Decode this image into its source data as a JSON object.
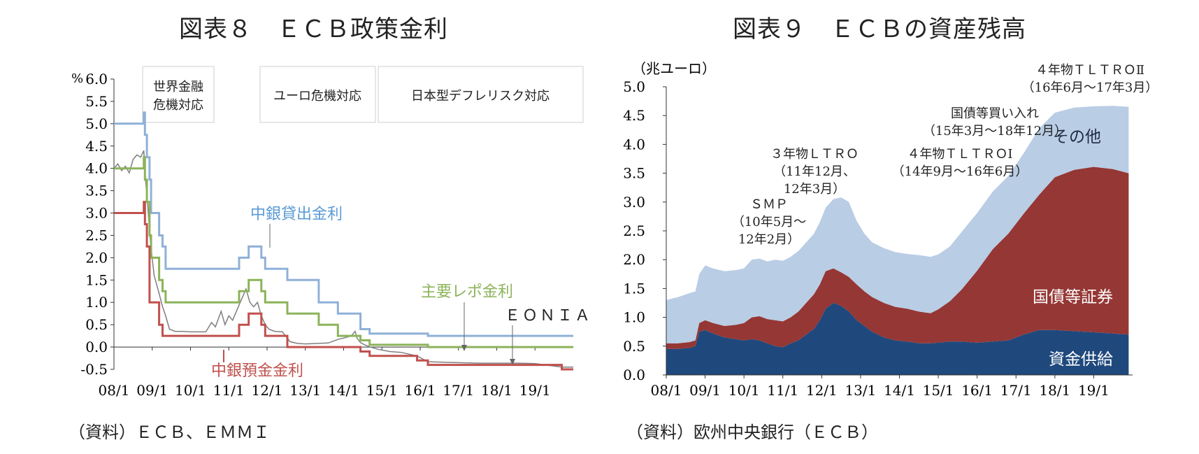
{
  "left": {
    "title": "図表８　ＥＣＢ政策金利",
    "source": "（資料）ＥＣＢ、ＥＭＭＩ",
    "unit": "%",
    "phase_labels": [
      [
        "世界金融",
        "危機対応"
      ],
      [
        "ユーロ危機対応"
      ],
      [
        "日本型デフレリスク対応"
      ]
    ]
  },
  "right": {
    "title": "図表９　ＥＣＢの資産残高",
    "source": "（資料）欧州中央銀行（ＥＣＢ）",
    "unit": "（兆ユーロ）",
    "annotations": {
      "smp": [
        "ＳＭＰ",
        "（10年5月～",
        "12年2月）"
      ],
      "ltro3": [
        "３年物ＬＴＲＯ",
        "（11年12月、",
        "12年3月）"
      ],
      "tltro1": [
        "４年物ＴＬＴＲＯⅠ",
        "（14年9月～16年6月）"
      ],
      "qe": [
        "国債等買い入れ",
        "（15年3月～18年12月）"
      ],
      "tltro2": [
        "４年物ＴＬＴＲＯⅡ",
        "（16年6月～17年3月）"
      ]
    }
  },
  "chart_data": [
    {
      "type": "line",
      "title": "図表８　ＥＣＢ政策金利",
      "ylabel": "%",
      "ylim": [
        -0.5,
        6.0
      ],
      "yticks": [
        "6.0",
        "5.5",
        "5.0",
        "4.5",
        "4.0",
        "3.5",
        "3.0",
        "2.5",
        "2.0",
        "1.5",
        "1.0",
        "0.5",
        "0.0",
        "-0.5"
      ],
      "xticks": [
        "08/1",
        "09/1",
        "10/1",
        "11/1",
        "12/1",
        "13/1",
        "14/1",
        "15/1",
        "16/1",
        "17/1",
        "18/1",
        "19/1"
      ],
      "xlim": [
        2008.0,
        2020.0
      ],
      "grid": false,
      "series": [
        {
          "name": "中銀貸出金利",
          "color": "#8fb0d8",
          "points": [
            [
              2008.0,
              5.0
            ],
            [
              2008.78,
              5.0
            ],
            [
              2008.78,
              5.25
            ],
            [
              2008.81,
              5.25
            ],
            [
              2008.81,
              4.75
            ],
            [
              2008.86,
              4.75
            ],
            [
              2008.86,
              4.25
            ],
            [
              2008.93,
              4.25
            ],
            [
              2008.93,
              3.75
            ],
            [
              2008.97,
              3.75
            ],
            [
              2008.97,
              3.0
            ],
            [
              2009.18,
              3.0
            ],
            [
              2009.18,
              2.5
            ],
            [
              2009.27,
              2.5
            ],
            [
              2009.27,
              2.25
            ],
            [
              2009.35,
              2.25
            ],
            [
              2009.35,
              1.75
            ],
            [
              2011.27,
              1.75
            ],
            [
              2011.27,
              2.0
            ],
            [
              2011.52,
              2.0
            ],
            [
              2011.52,
              2.25
            ],
            [
              2011.85,
              2.25
            ],
            [
              2011.85,
              2.0
            ],
            [
              2011.95,
              2.0
            ],
            [
              2011.95,
              1.75
            ],
            [
              2012.53,
              1.75
            ],
            [
              2012.53,
              1.5
            ],
            [
              2013.35,
              1.5
            ],
            [
              2013.35,
              1.0
            ],
            [
              2013.85,
              1.0
            ],
            [
              2013.85,
              0.75
            ],
            [
              2014.44,
              0.75
            ],
            [
              2014.44,
              0.4
            ],
            [
              2014.68,
              0.4
            ],
            [
              2014.68,
              0.3
            ],
            [
              2016.2,
              0.3
            ],
            [
              2016.2,
              0.25
            ],
            [
              2020.0,
              0.25
            ]
          ]
        },
        {
          "name": "主要レポ金利",
          "color": "#8cb35a",
          "points": [
            [
              2008.0,
              4.0
            ],
            [
              2008.78,
              4.0
            ],
            [
              2008.78,
              4.25
            ],
            [
              2008.81,
              4.25
            ],
            [
              2008.81,
              3.75
            ],
            [
              2008.86,
              3.75
            ],
            [
              2008.86,
              3.25
            ],
            [
              2008.93,
              3.25
            ],
            [
              2008.93,
              2.5
            ],
            [
              2008.97,
              2.5
            ],
            [
              2008.97,
              2.0
            ],
            [
              2009.18,
              2.0
            ],
            [
              2009.18,
              1.5
            ],
            [
              2009.27,
              1.5
            ],
            [
              2009.27,
              1.25
            ],
            [
              2009.35,
              1.25
            ],
            [
              2009.35,
              1.0
            ],
            [
              2011.27,
              1.0
            ],
            [
              2011.27,
              1.25
            ],
            [
              2011.52,
              1.25
            ],
            [
              2011.52,
              1.5
            ],
            [
              2011.85,
              1.5
            ],
            [
              2011.85,
              1.25
            ],
            [
              2011.95,
              1.25
            ],
            [
              2011.95,
              1.0
            ],
            [
              2012.53,
              1.0
            ],
            [
              2012.53,
              0.75
            ],
            [
              2013.35,
              0.75
            ],
            [
              2013.35,
              0.5
            ],
            [
              2013.85,
              0.5
            ],
            [
              2013.85,
              0.25
            ],
            [
              2014.44,
              0.25
            ],
            [
              2014.44,
              0.15
            ],
            [
              2014.68,
              0.15
            ],
            [
              2014.68,
              0.05
            ],
            [
              2016.2,
              0.05
            ],
            [
              2016.2,
              0.0
            ],
            [
              2020.0,
              0.0
            ]
          ]
        },
        {
          "name": "中銀預金金利",
          "color": "#c0504d",
          "points": [
            [
              2008.0,
              3.0
            ],
            [
              2008.78,
              3.0
            ],
            [
              2008.78,
              3.25
            ],
            [
              2008.81,
              3.25
            ],
            [
              2008.81,
              2.75
            ],
            [
              2008.86,
              2.75
            ],
            [
              2008.86,
              2.25
            ],
            [
              2008.93,
              2.25
            ],
            [
              2008.93,
              1.0
            ],
            [
              2008.97,
              1.0
            ],
            [
              2008.97,
              1.0
            ],
            [
              2009.18,
              1.0
            ],
            [
              2009.18,
              0.5
            ],
            [
              2009.27,
              0.5
            ],
            [
              2009.27,
              0.25
            ],
            [
              2011.27,
              0.25
            ],
            [
              2011.27,
              0.5
            ],
            [
              2011.52,
              0.5
            ],
            [
              2011.52,
              0.75
            ],
            [
              2011.85,
              0.75
            ],
            [
              2011.85,
              0.5
            ],
            [
              2011.95,
              0.5
            ],
            [
              2011.95,
              0.25
            ],
            [
              2012.53,
              0.25
            ],
            [
              2012.53,
              0.0
            ],
            [
              2014.44,
              0.0
            ],
            [
              2014.44,
              -0.1
            ],
            [
              2014.68,
              -0.1
            ],
            [
              2014.68,
              -0.2
            ],
            [
              2015.92,
              -0.2
            ],
            [
              2015.92,
              -0.3
            ],
            [
              2016.2,
              -0.3
            ],
            [
              2016.2,
              -0.4
            ],
            [
              2019.7,
              -0.4
            ],
            [
              2019.7,
              -0.5
            ],
            [
              2020.0,
              -0.5
            ]
          ]
        },
        {
          "name": "ＥＯＮＩＡ",
          "color": "#7f7f7f",
          "points": [
            [
              2008.0,
              4.0
            ],
            [
              2008.1,
              4.1
            ],
            [
              2008.2,
              3.95
            ],
            [
              2008.3,
              4.05
            ],
            [
              2008.4,
              3.9
            ],
            [
              2008.5,
              4.2
            ],
            [
              2008.6,
              4.3
            ],
            [
              2008.7,
              4.25
            ],
            [
              2008.78,
              4.4
            ],
            [
              2008.82,
              3.8
            ],
            [
              2008.88,
              3.2
            ],
            [
              2008.93,
              2.6
            ],
            [
              2008.97,
              2.2
            ],
            [
              2009.05,
              1.6
            ],
            [
              2009.18,
              1.2
            ],
            [
              2009.27,
              0.9
            ],
            [
              2009.35,
              0.7
            ],
            [
              2009.45,
              0.4
            ],
            [
              2009.6,
              0.35
            ],
            [
              2009.8,
              0.35
            ],
            [
              2010.0,
              0.34
            ],
            [
              2010.2,
              0.34
            ],
            [
              2010.4,
              0.34
            ],
            [
              2010.55,
              0.55
            ],
            [
              2010.65,
              0.45
            ],
            [
              2010.8,
              0.8
            ],
            [
              2010.9,
              0.5
            ],
            [
              2011.0,
              0.7
            ],
            [
              2011.1,
              0.6
            ],
            [
              2011.25,
              0.9
            ],
            [
              2011.35,
              1.1
            ],
            [
              2011.45,
              1.3
            ],
            [
              2011.55,
              1.0
            ],
            [
              2011.65,
              0.9
            ],
            [
              2011.75,
              1.0
            ],
            [
              2011.85,
              0.7
            ],
            [
              2011.95,
              0.5
            ],
            [
              2012.05,
              0.4
            ],
            [
              2012.2,
              0.35
            ],
            [
              2012.4,
              0.34
            ],
            [
              2012.53,
              0.2
            ],
            [
              2012.6,
              0.12
            ],
            [
              2012.8,
              0.08
            ],
            [
              2013.0,
              0.07
            ],
            [
              2013.3,
              0.08
            ],
            [
              2013.6,
              0.09
            ],
            [
              2013.85,
              0.17
            ],
            [
              2014.0,
              0.2
            ],
            [
              2014.2,
              0.25
            ],
            [
              2014.3,
              0.35
            ],
            [
              2014.35,
              0.2
            ],
            [
              2014.44,
              0.1
            ],
            [
              2014.55,
              0.05
            ],
            [
              2014.7,
              0.0
            ],
            [
              2014.9,
              -0.05
            ],
            [
              2015.2,
              -0.1
            ],
            [
              2015.5,
              -0.12
            ],
            [
              2015.92,
              -0.2
            ],
            [
              2016.2,
              -0.33
            ],
            [
              2016.6,
              -0.34
            ],
            [
              2017.0,
              -0.35
            ],
            [
              2017.5,
              -0.36
            ],
            [
              2018.0,
              -0.36
            ],
            [
              2018.5,
              -0.36
            ],
            [
              2019.0,
              -0.37
            ],
            [
              2019.7,
              -0.45
            ],
            [
              2020.0,
              -0.45
            ]
          ]
        }
      ],
      "annotations": [
        {
          "text": "中銀貸出金利",
          "color": "#5b9bd5"
        },
        {
          "text": "主要レポ金利",
          "color": "#8cb35a"
        },
        {
          "text": "ＥＯＮＩＡ",
          "color": "#222222"
        },
        {
          "text": "中銀預金金利",
          "color": "#c0504d"
        }
      ]
    },
    {
      "type": "area",
      "title": "図表９　ＥＣＢの資産残高",
      "ylabel": "（兆ユーロ）",
      "ylim": [
        0.0,
        5.0
      ],
      "yticks": [
        "5.0",
        "4.5",
        "4.0",
        "3.5",
        "3.0",
        "2.5",
        "2.0",
        "1.5",
        "1.0",
        "0.5",
        "0.0"
      ],
      "xticks": [
        "08/1",
        "09/1",
        "10/1",
        "11/1",
        "12/1",
        "13/1",
        "14/1",
        "15/1",
        "16/1",
        "17/1",
        "18/1",
        "19/1"
      ],
      "xlim": [
        2008.0,
        2020.0
      ],
      "grid": false,
      "stacked": true,
      "x": [
        2008.0,
        2008.3,
        2008.6,
        2008.75,
        2008.85,
        2009.0,
        2009.2,
        2009.5,
        2009.8,
        2010.0,
        2010.2,
        2010.4,
        2010.6,
        2010.8,
        2011.0,
        2011.2,
        2011.4,
        2011.6,
        2011.8,
        2011.95,
        2012.1,
        2012.3,
        2012.5,
        2012.7,
        2012.9,
        2013.1,
        2013.3,
        2013.6,
        2013.9,
        2014.2,
        2014.5,
        2014.8,
        2015.0,
        2015.3,
        2015.6,
        2016.0,
        2016.4,
        2016.8,
        2017.2,
        2017.6,
        2018.0,
        2018.5,
        2019.0,
        2019.5,
        2019.9
      ],
      "series": [
        {
          "name": "資金供給",
          "color": "#1f497d",
          "values": [
            0.45,
            0.45,
            0.47,
            0.5,
            0.75,
            0.78,
            0.72,
            0.65,
            0.62,
            0.6,
            0.62,
            0.6,
            0.55,
            0.5,
            0.48,
            0.55,
            0.6,
            0.7,
            0.8,
            0.95,
            1.15,
            1.25,
            1.2,
            1.1,
            0.95,
            0.85,
            0.75,
            0.65,
            0.6,
            0.58,
            0.55,
            0.55,
            0.56,
            0.58,
            0.58,
            0.56,
            0.58,
            0.6,
            0.7,
            0.78,
            0.78,
            0.76,
            0.74,
            0.72,
            0.7
          ]
        },
        {
          "name": "国債等証券",
          "color": "#953735",
          "values": [
            0.1,
            0.1,
            0.1,
            0.1,
            0.15,
            0.17,
            0.18,
            0.2,
            0.25,
            0.3,
            0.38,
            0.42,
            0.42,
            0.45,
            0.45,
            0.45,
            0.5,
            0.55,
            0.6,
            0.62,
            0.65,
            0.6,
            0.58,
            0.6,
            0.62,
            0.6,
            0.6,
            0.6,
            0.58,
            0.57,
            0.55,
            0.52,
            0.58,
            0.7,
            0.9,
            1.25,
            1.6,
            1.85,
            2.1,
            2.35,
            2.65,
            2.8,
            2.87,
            2.85,
            2.8
          ]
        },
        {
          "name": "その他",
          "color": "#b9cde5",
          "values": [
            0.75,
            0.8,
            0.85,
            0.85,
            0.85,
            0.95,
            0.95,
            0.95,
            0.95,
            0.95,
            1.0,
            1.0,
            1.0,
            1.05,
            1.05,
            1.05,
            1.05,
            1.05,
            1.05,
            1.08,
            1.1,
            1.2,
            1.3,
            1.3,
            1.1,
            1.0,
            0.95,
            0.95,
            0.95,
            0.95,
            0.98,
            0.98,
            0.95,
            0.95,
            1.0,
            1.0,
            1.0,
            1.0,
            1.05,
            1.15,
            1.12,
            1.08,
            1.05,
            1.1,
            1.15
          ]
        }
      ]
    }
  ]
}
